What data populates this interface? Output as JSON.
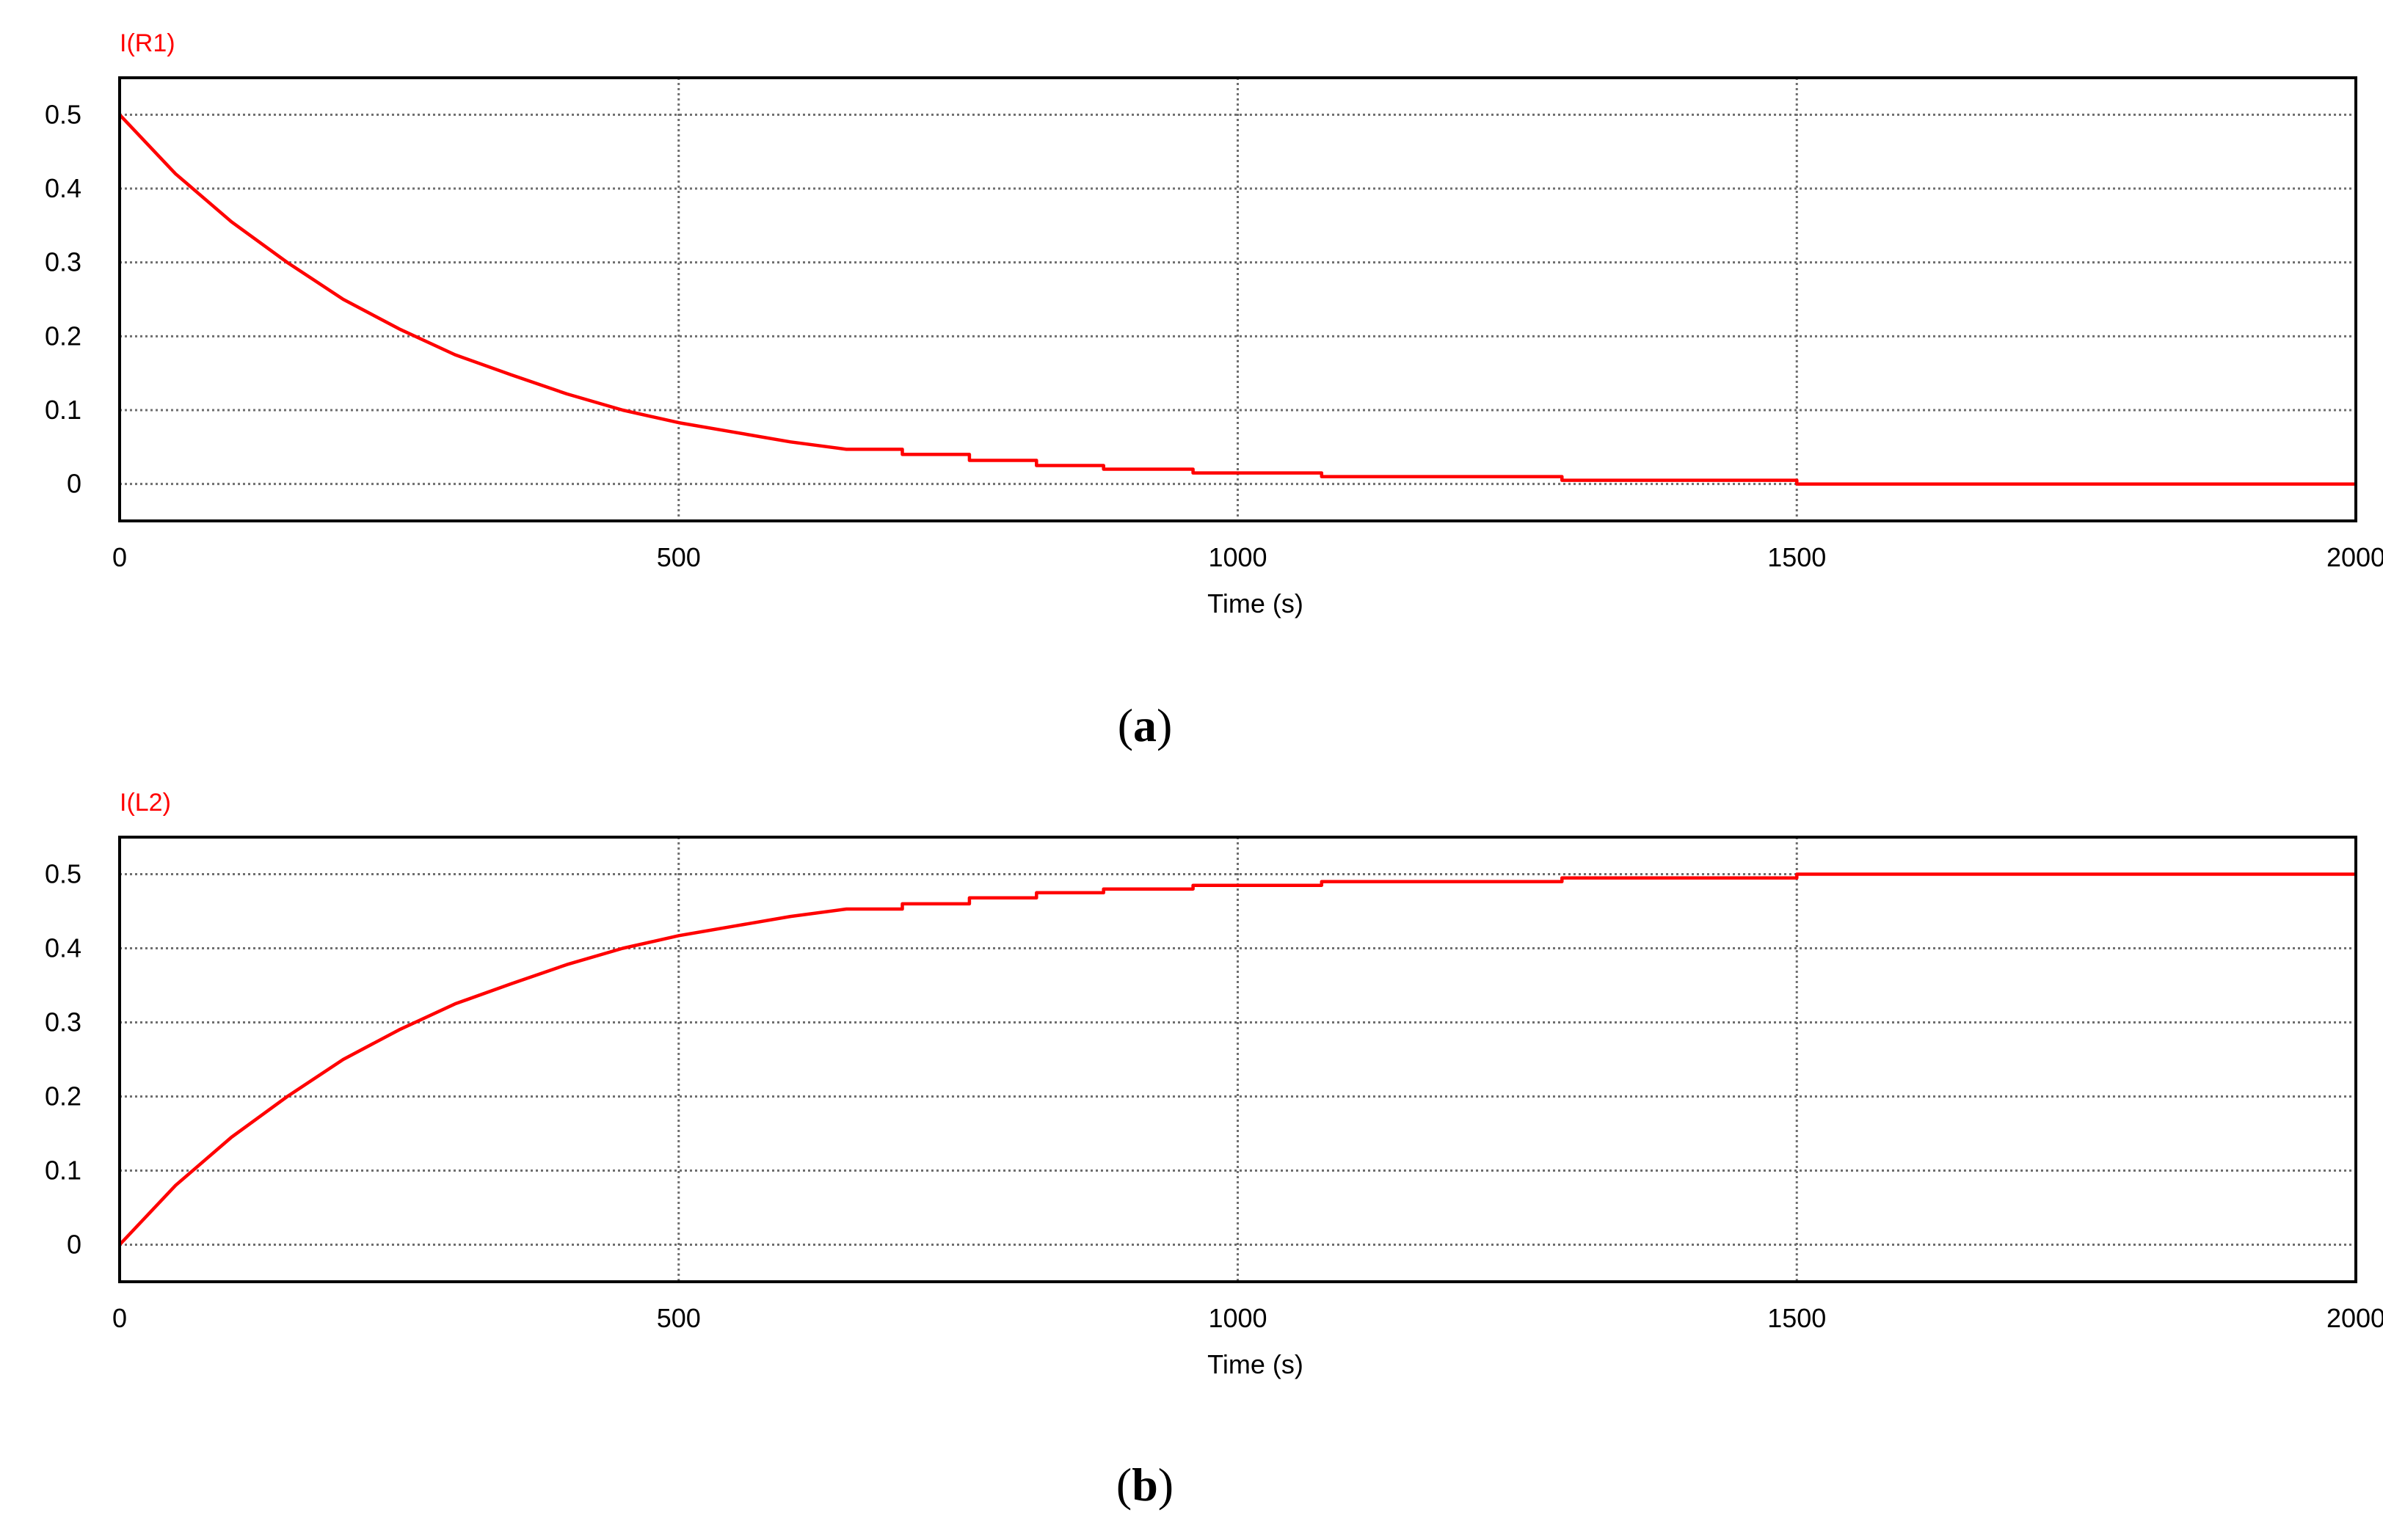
{
  "chart_data": [
    {
      "type": "line",
      "series_label": "I(R1)",
      "xlabel": "Time (s)",
      "caption": "(a)",
      "caption_letter": "a",
      "xlim": [
        0,
        2000
      ],
      "ylim": [
        -0.05,
        0.55
      ],
      "xticks": [
        0,
        500,
        1000,
        1500,
        2000
      ],
      "yticks": [
        0,
        0.1,
        0.2,
        0.3,
        0.4,
        0.5
      ],
      "grid": true,
      "color": "#ff0000",
      "series": [
        {
          "name": "I(R1)",
          "x": [
            0,
            50,
            100,
            150,
            200,
            250,
            300,
            350,
            400,
            450,
            500,
            550,
            600,
            650,
            700,
            760,
            820,
            880,
            960,
            1075,
            1290,
            1500,
            1750,
            2000
          ],
          "y": [
            0.5,
            0.42,
            0.355,
            0.3,
            0.25,
            0.21,
            0.175,
            0.148,
            0.122,
            0.1,
            0.083,
            0.07,
            0.057,
            0.047,
            0.04,
            0.032,
            0.025,
            0.02,
            0.015,
            0.01,
            0.005,
            0.0,
            0.0,
            0.0
          ]
        }
      ]
    },
    {
      "type": "line",
      "series_label": "I(L2)",
      "xlabel": "Time (s)",
      "caption": "(b)",
      "caption_letter": "b",
      "xlim": [
        0,
        2000
      ],
      "ylim": [
        -0.05,
        0.55
      ],
      "xticks": [
        0,
        500,
        1000,
        1500,
        2000
      ],
      "yticks": [
        0,
        0.1,
        0.2,
        0.3,
        0.4,
        0.5
      ],
      "grid": true,
      "color": "#ff0000",
      "series": [
        {
          "name": "I(L2)",
          "x": [
            0,
            50,
            100,
            150,
            200,
            250,
            300,
            350,
            400,
            450,
            500,
            550,
            600,
            650,
            700,
            760,
            820,
            880,
            960,
            1075,
            1290,
            1500,
            1750,
            2000
          ],
          "y": [
            0.0,
            0.08,
            0.145,
            0.2,
            0.25,
            0.29,
            0.325,
            0.352,
            0.378,
            0.4,
            0.417,
            0.43,
            0.443,
            0.453,
            0.46,
            0.468,
            0.475,
            0.48,
            0.485,
            0.49,
            0.495,
            0.5,
            0.5,
            0.5
          ]
        }
      ]
    }
  ]
}
